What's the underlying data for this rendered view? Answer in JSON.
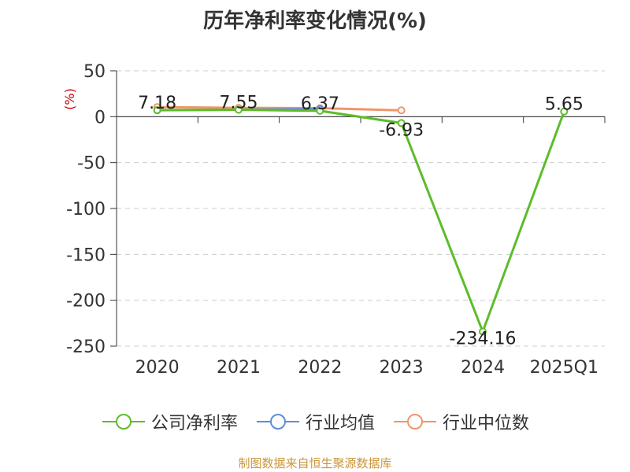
{
  "chart_data": {
    "type": "line",
    "title": "历年净利率变化情况(%)",
    "ylabel": "(%)",
    "categories": [
      "2020",
      "2021",
      "2022",
      "2023",
      "2024",
      "2025Q1"
    ],
    "ylim": [
      -250,
      50
    ],
    "yticks": [
      50,
      0,
      -50,
      -100,
      -150,
      -200,
      -250
    ],
    "grid": true,
    "legend_position": "bottom",
    "series": [
      {
        "name": "公司净利率",
        "color": "#5cbd2a",
        "values": [
          7.18,
          7.55,
          6.37,
          -6.93,
          -234.16,
          5.65
        ],
        "labels": [
          "7.18",
          "7.55",
          "6.37",
          "-6.93",
          "-234.16",
          "5.65"
        ]
      },
      {
        "name": "行业均值",
        "color": "#5b8ed8",
        "values": [
          7.0,
          7.6,
          8.3,
          null,
          null,
          null
        ]
      },
      {
        "name": "行业中位数",
        "color": "#f0956a",
        "values": [
          10.5,
          9.6,
          9.3,
          6.9,
          null,
          null
        ]
      }
    ]
  },
  "source": "制图数据来自恒生聚源数据库"
}
